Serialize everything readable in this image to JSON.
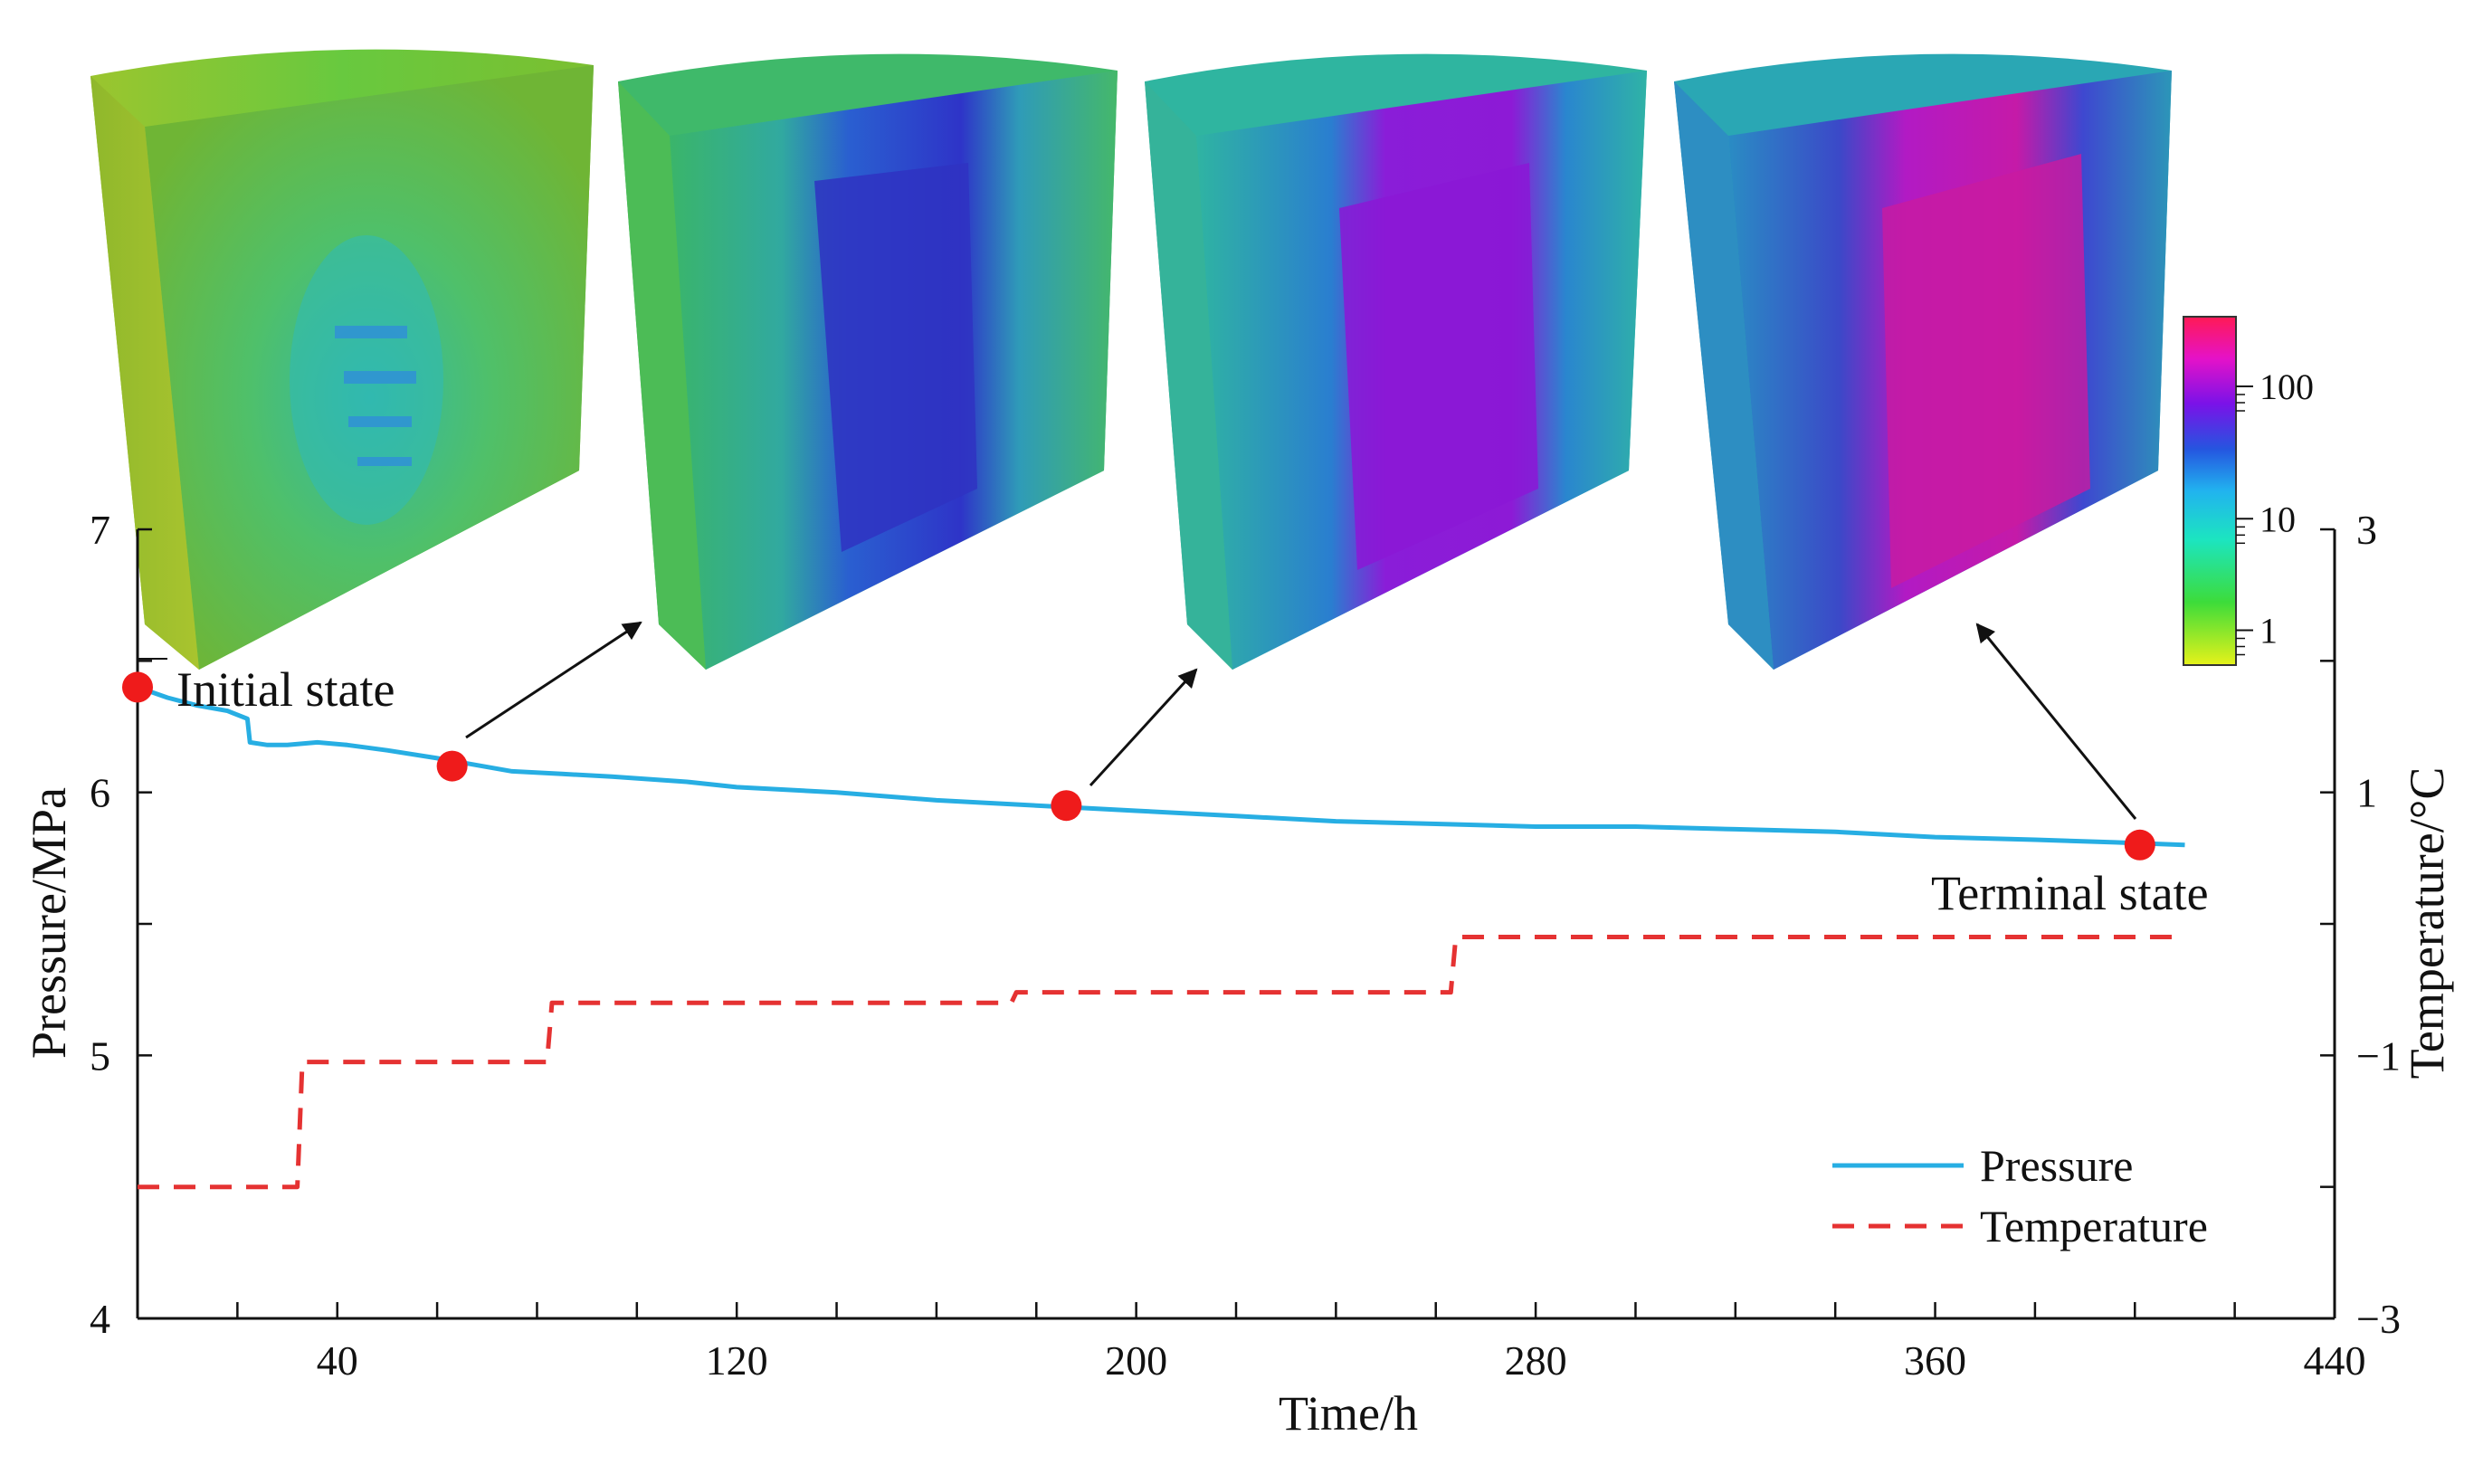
{
  "chart_data": {
    "type": "line",
    "title": "",
    "xlabel": "Time/h",
    "ylabel": "Pressure/MPa",
    "y2label": "Temperature/°C",
    "xlim": [
      0,
      440
    ],
    "ylim": [
      4,
      7
    ],
    "y2lim": [
      -3,
      3
    ],
    "xticks": [
      40,
      120,
      200,
      280,
      360,
      440
    ],
    "yticks": [
      4,
      5,
      6,
      7
    ],
    "y2ticks": [
      -3,
      -1,
      1,
      3
    ],
    "series": [
      {
        "name": "Pressure",
        "axis": "left",
        "color": "#27aee3",
        "style": "solid",
        "x": [
          0,
          6,
          12,
          18,
          22,
          22.5,
          26,
          30,
          36,
          42,
          50,
          60,
          66,
          75,
          85,
          95,
          110,
          120,
          140,
          160,
          180,
          200,
          220,
          240,
          260,
          280,
          300,
          320,
          340,
          360,
          380,
          396,
          410
        ],
        "y": [
          6.4,
          6.36,
          6.33,
          6.31,
          6.28,
          6.19,
          6.18,
          6.18,
          6.19,
          6.18,
          6.16,
          6.13,
          6.11,
          6.08,
          6.07,
          6.06,
          6.04,
          6.02,
          6.0,
          5.97,
          5.95,
          5.93,
          5.91,
          5.89,
          5.88,
          5.87,
          5.87,
          5.86,
          5.85,
          5.83,
          5.82,
          5.81,
          5.8
        ]
      },
      {
        "name": "Temperature",
        "axis": "right",
        "color": "#e53232",
        "style": "dashed",
        "x": [
          0,
          32,
          33,
          82,
          83,
          175,
          176,
          263,
          264,
          410
        ],
        "y": [
          -2.0,
          -2.0,
          -1.05,
          -1.05,
          -0.6,
          -0.6,
          -0.52,
          -0.52,
          -0.1,
          -0.1
        ]
      }
    ],
    "markers": [
      {
        "label": "Initial state",
        "x": 0,
        "y": 6.4
      },
      {
        "label": "",
        "x": 63,
        "y": 6.1
      },
      {
        "label": "",
        "x": 186,
        "y": 5.95
      },
      {
        "label": "Terminal state",
        "x": 401,
        "y": 5.8
      }
    ],
    "legend": {
      "position": "bottom-right",
      "entries": [
        "Pressure",
        "Temperature"
      ]
    },
    "colorbar": {
      "ticks": [
        "100",
        "10",
        "1"
      ],
      "scale": "log"
    },
    "insets": [
      "reservoir-3d-snapshot-1",
      "reservoir-3d-snapshot-2",
      "reservoir-3d-snapshot-3",
      "reservoir-3d-snapshot-4"
    ]
  }
}
